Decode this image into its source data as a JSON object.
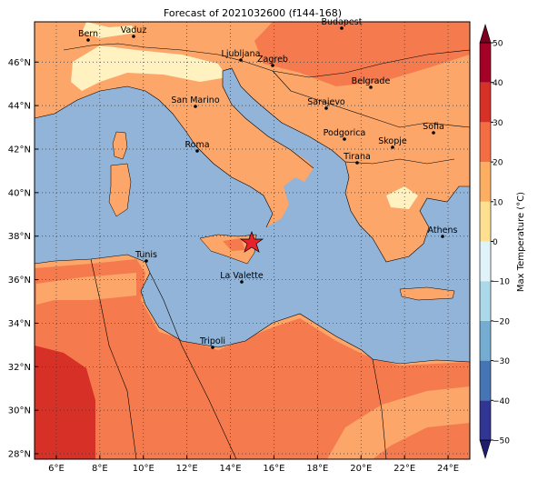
{
  "title": "Forecast of 2021032600 (f144-168)",
  "lon_range": [
    5,
    25
  ],
  "lat_range": [
    27.75,
    47.85
  ],
  "x_ticks": [
    {
      "value": 6,
      "label": "6°E"
    },
    {
      "value": 8,
      "label": "8°E"
    },
    {
      "value": 10,
      "label": "10°E"
    },
    {
      "value": 12,
      "label": "12°E"
    },
    {
      "value": 14,
      "label": "14°E"
    },
    {
      "value": 16,
      "label": "16°E"
    },
    {
      "value": 18,
      "label": "18°E"
    },
    {
      "value": 20,
      "label": "20°E"
    },
    {
      "value": 22,
      "label": "22°E"
    },
    {
      "value": 24,
      "label": "24°E"
    }
  ],
  "y_ticks": [
    {
      "value": 28,
      "label": "28°N"
    },
    {
      "value": 30,
      "label": "30°N"
    },
    {
      "value": 32,
      "label": "32°N"
    },
    {
      "value": 34,
      "label": "34°N"
    },
    {
      "value": 36,
      "label": "36°N"
    },
    {
      "value": 38,
      "label": "38°N"
    },
    {
      "value": 40,
      "label": "40°N"
    },
    {
      "value": 42,
      "label": "42°N"
    },
    {
      "value": 44,
      "label": "44°N"
    },
    {
      "value": 46,
      "label": "46°N"
    }
  ],
  "colorbar": {
    "label": "Max Temperature (°C)",
    "range": [
      -50,
      50
    ],
    "ticks": [
      {
        "value": -50,
        "label": "−50"
      },
      {
        "value": -40,
        "label": "−40"
      },
      {
        "value": -30,
        "label": "−30"
      },
      {
        "value": -20,
        "label": "−20"
      },
      {
        "value": -10,
        "label": "−10"
      },
      0,
      10,
      20,
      30,
      40,
      50
    ],
    "colors": [
      "#313695",
      "#4575b4",
      "#74add1",
      "#abd9e9",
      "#e0f3f8",
      "#fee090",
      "#fdae61",
      "#f46d43",
      "#d73027",
      "#a50026"
    ],
    "under_color": "#1f1f6e",
    "over_color": "#7a0020"
  },
  "cities": [
    "Bern",
    "Vaduz",
    "Budapest",
    "Ljubljana",
    "Zagreb",
    "Belgrade",
    "San Marino",
    "Sarajevo",
    "Sofia",
    "Podgorica",
    "Skopje",
    "Roma",
    "Tirana",
    "Athens",
    "Tunis",
    "La Valette",
    "Tripoli"
  ]
}
